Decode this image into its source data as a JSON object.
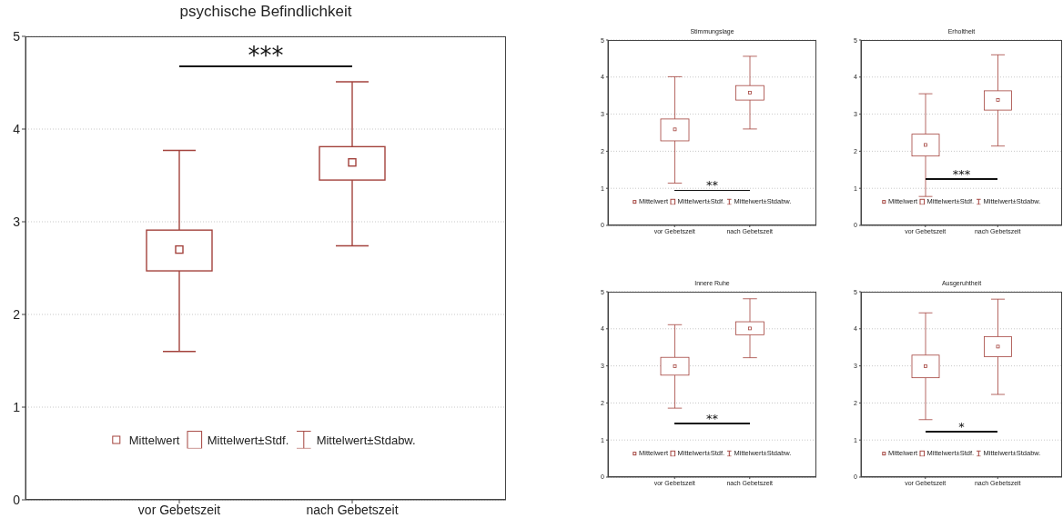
{
  "chart_data": [
    {
      "type": "box",
      "title": "psychische Befindlichkeit",
      "categories": [
        "vor Gebetszeit",
        "nach Gebetszeit"
      ],
      "color": "#a3423c",
      "ylim": [
        0,
        5
      ],
      "yticks": [
        0,
        1,
        2,
        3,
        4,
        5
      ],
      "grid": "y",
      "boxes": [
        {
          "low": 1.6,
          "q1": 2.47,
          "median": 2.7,
          "q3": 2.91,
          "high": 3.77
        },
        {
          "low": 2.74,
          "q1": 3.45,
          "median": 3.64,
          "q3": 3.81,
          "high": 4.51
        }
      ],
      "annotations": [
        "Mittelwert",
        "Mittelwert±Stdf.",
        "Mittelwert±Stdabw.",
        "***"
      ]
    },
    {
      "type": "box",
      "title": "Stimmungslage",
      "categories": [
        "vor Gebetszeit",
        "nach Gebetszeit"
      ],
      "color": "#a3423c",
      "ylim": [
        0,
        5
      ],
      "yticks": [
        0,
        1,
        2,
        3,
        4,
        5
      ],
      "grid": "y",
      "boxes": [
        {
          "low": 1.14,
          "q1": 2.28,
          "median": 2.59,
          "q3": 2.87,
          "high": 4.01
        },
        {
          "low": 2.6,
          "q1": 3.38,
          "median": 3.58,
          "q3": 3.77,
          "high": 4.56
        }
      ],
      "annotations": [
        "Mittelwert",
        "Mittelwert±Stdf.",
        "Mittelwert±Stdabw.",
        "**"
      ]
    },
    {
      "type": "box",
      "title": "Erholtheit",
      "categories": [
        "vor Gebetszeit",
        "nach Gebetszeit"
      ],
      "color": "#a3423c",
      "ylim": [
        0,
        5
      ],
      "yticks": [
        0,
        1,
        2,
        3,
        4,
        5
      ],
      "grid": "y",
      "boxes": [
        {
          "low": 0.78,
          "q1": 1.87,
          "median": 2.17,
          "q3": 2.46,
          "high": 3.55
        },
        {
          "low": 2.14,
          "q1": 3.11,
          "median": 3.38,
          "q3": 3.63,
          "high": 4.6
        }
      ],
      "annotations": [
        "Mittelwert",
        "Mittelwert±Stdf.",
        "Mittelwert±Stdabw.",
        "***"
      ]
    },
    {
      "type": "box",
      "title": "Innere Ruhe",
      "categories": [
        "vor Gebetszeit",
        "nach Gebetszeit"
      ],
      "color": "#a3423c",
      "ylim": [
        0,
        5
      ],
      "yticks": [
        0,
        1,
        2,
        3,
        4,
        5
      ],
      "grid": "y",
      "boxes": [
        {
          "low": 1.86,
          "q1": 2.75,
          "median": 2.99,
          "q3": 3.23,
          "high": 4.11
        },
        {
          "low": 3.22,
          "q1": 3.84,
          "median": 4.01,
          "q3": 4.19,
          "high": 4.81
        }
      ],
      "annotations": [
        "Mittelwert",
        "Mittelwert±Stdf.",
        "Mittelwert±Stdabw.",
        "**"
      ]
    },
    {
      "type": "box",
      "title": "Ausgeruhtheit",
      "categories": [
        "vor Gebetszeit",
        "nach Gebetszeit"
      ],
      "color": "#a3423c",
      "ylim": [
        0,
        5
      ],
      "yticks": [
        0,
        1,
        2,
        3,
        4,
        5
      ],
      "grid": "y",
      "boxes": [
        {
          "low": 1.55,
          "q1": 2.68,
          "median": 2.99,
          "q3": 3.29,
          "high": 4.43
        },
        {
          "low": 2.23,
          "q1": 3.25,
          "median": 3.52,
          "q3": 3.79,
          "high": 4.8
        }
      ],
      "annotations": [
        "Mittelwert",
        "Mittelwert±Stdf.",
        "Mittelwert±Stdabw.",
        "*"
      ]
    }
  ]
}
